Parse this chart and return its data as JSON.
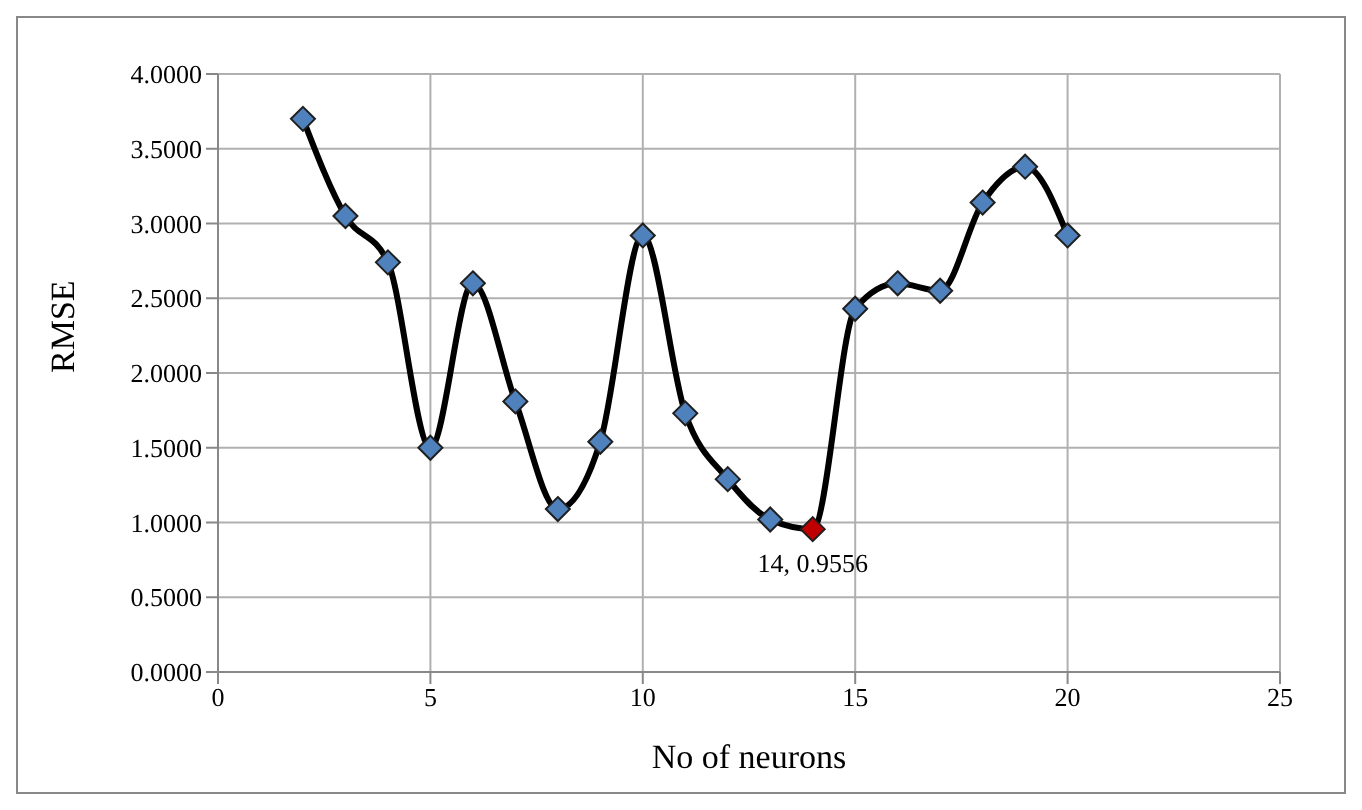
{
  "chart_data": {
    "type": "line",
    "xlabel": "No of neurons",
    "ylabel": "RMSE",
    "x": [
      2,
      3,
      4,
      5,
      6,
      7,
      8,
      9,
      10,
      11,
      12,
      13,
      14,
      15,
      16,
      17,
      18,
      19,
      20
    ],
    "series": [
      {
        "color": "#000000",
        "colors": [
          "#4f81bd",
          "#4f81bd",
          "#4f81bd",
          "#4f81bd",
          "#4f81bd",
          "#4f81bd",
          "#4f81bd",
          "#4f81bd",
          "#4f81bd",
          "#4f81bd",
          "#4f81bd",
          "#4f81bd",
          "#c00000",
          "#4f81bd",
          "#4f81bd",
          "#4f81bd",
          "#4f81bd",
          "#4f81bd",
          "#4f81bd"
        ],
        "values": [
          3.7,
          3.05,
          2.74,
          1.5,
          2.6,
          1.81,
          1.09,
          1.54,
          2.92,
          1.73,
          1.29,
          1.02,
          0.9556,
          2.43,
          2.6,
          2.55,
          3.14,
          3.38,
          2.92
        ]
      }
    ],
    "xlim": [
      0,
      25
    ],
    "xticks": [
      0,
      5,
      10,
      15,
      20,
      25
    ],
    "ylim": [
      0,
      4
    ],
    "yticks": [
      {
        "value": 0,
        "label": "0.0000"
      },
      {
        "value": 0.5,
        "label": "0.5000"
      },
      {
        "value": 1,
        "label": "1.0000"
      },
      {
        "value": 1.5,
        "label": "1.5000"
      },
      {
        "value": 2,
        "label": "2.0000"
      },
      {
        "value": 2.5,
        "label": "2.5000"
      },
      {
        "value": 3,
        "label": "3.0000"
      },
      {
        "value": 3.5,
        "label": "3.5000"
      },
      {
        "value": 4,
        "label": "4.0000"
      }
    ],
    "grid": true,
    "marker": "diamond",
    "line_style": "solid",
    "legend": false,
    "annotations": [
      {
        "text": "14, 0.9556",
        "x": 14,
        "y": 0.9556
      }
    ]
  }
}
